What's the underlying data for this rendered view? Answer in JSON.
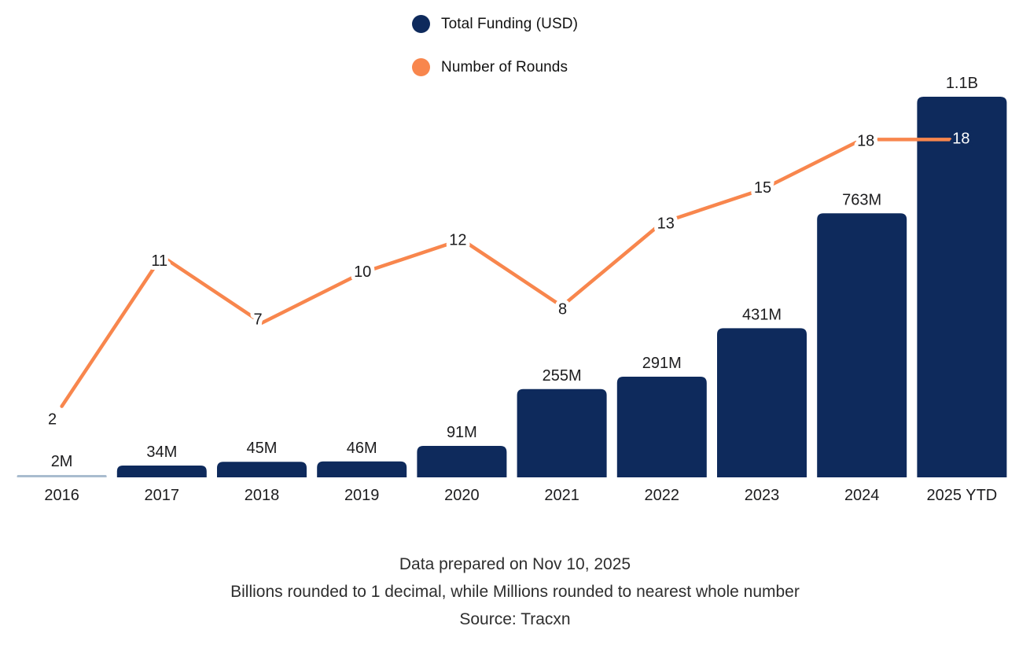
{
  "legend": {
    "items": [
      {
        "label": "Total Funding (USD)",
        "color": "#0e2a5c"
      },
      {
        "label": "Number of Rounds",
        "color": "#f8864d"
      }
    ]
  },
  "chart_data": {
    "type": "bar",
    "title": "",
    "categories": [
      "2016",
      "2017",
      "2018",
      "2019",
      "2020",
      "2021",
      "2022",
      "2023",
      "2024",
      "2025 YTD"
    ],
    "series": [
      {
        "name": "Total Funding (USD)",
        "type": "bar",
        "unit": "USD millions",
        "values": [
          2,
          34,
          45,
          46,
          91,
          255,
          291,
          431,
          763,
          1100
        ],
        "value_labels": [
          "2M",
          "34M",
          "45M",
          "46M",
          "91M",
          "255M",
          "291M",
          "431M",
          "763M",
          "1.1B"
        ]
      },
      {
        "name": "Number of Rounds",
        "type": "line",
        "values": [
          2,
          11,
          7,
          10,
          12,
          8,
          13,
          15,
          18,
          18
        ],
        "value_labels": [
          "2",
          "11",
          "7",
          "10",
          "12",
          "8",
          "13",
          "15",
          "18",
          "18"
        ]
      }
    ],
    "legend_position": "top-center",
    "grid": false,
    "axes_visible": false,
    "ylim_musd": [
      0,
      1250
    ],
    "y2lim_rounds": [
      0,
      26
    ]
  },
  "footer": {
    "prepared": "Data prepared on Nov 10, 2025",
    "rounding_note": "Billions rounded to 1 decimal, while Millions rounded to nearest whole number",
    "source": "Source: Tracxn"
  },
  "colors": {
    "bar": "#0e2a5c",
    "line": "#f8864d",
    "tiny_bar": "#a9bccf",
    "text": "#1c1c1e",
    "label_on_bar": "#ffffff",
    "background": "#ffffff"
  }
}
